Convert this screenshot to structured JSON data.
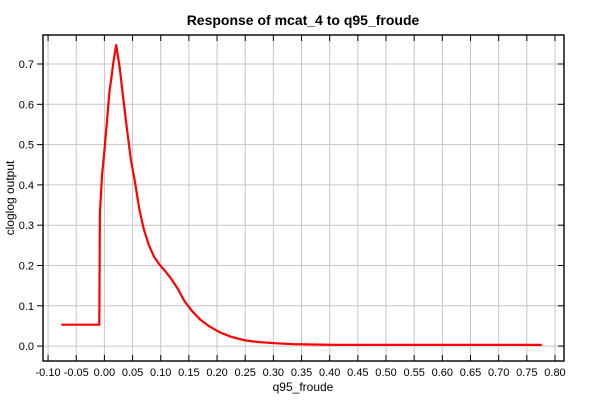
{
  "chart_data": {
    "type": "line",
    "title": "Response of mcat_4 to q95_froude",
    "xlabel": "q95_froude",
    "ylabel": "cloglog output",
    "xlim": [
      -0.109,
      0.816
    ],
    "ylim": [
      -0.037,
      0.772
    ],
    "grid": true,
    "legend": false,
    "x_ticks": [
      -0.1,
      -0.05,
      0.0,
      0.05,
      0.1,
      0.15,
      0.2,
      0.25,
      0.3,
      0.35,
      0.4,
      0.45,
      0.5,
      0.55,
      0.6,
      0.65,
      0.7,
      0.75,
      0.8
    ],
    "x_tick_labels": [
      "-0.10",
      "-0.05",
      "0.00",
      "0.05",
      "0.10",
      "0.15",
      "0.20",
      "0.25",
      "0.30",
      "0.35",
      "0.40",
      "0.45",
      "0.50",
      "0.55",
      "0.60",
      "0.65",
      "0.70",
      "0.75",
      "0.80"
    ],
    "y_ticks": [
      0.0,
      0.1,
      0.2,
      0.3,
      0.4,
      0.5,
      0.6,
      0.7
    ],
    "y_tick_labels": [
      "0.0",
      "0.1",
      "0.2",
      "0.3",
      "0.4",
      "0.5",
      "0.6",
      "0.7"
    ],
    "series": [
      {
        "color": "#ff0000",
        "points": [
          [
            -0.075,
            0.053
          ],
          [
            -0.009,
            0.053
          ],
          [
            -0.008,
            0.33
          ],
          [
            -0.004,
            0.425
          ],
          [
            0.0,
            0.485
          ],
          [
            0.005,
            0.565
          ],
          [
            0.009,
            0.632
          ],
          [
            0.012,
            0.662
          ],
          [
            0.016,
            0.705
          ],
          [
            0.021,
            0.747
          ],
          [
            0.027,
            0.693
          ],
          [
            0.033,
            0.62
          ],
          [
            0.04,
            0.54
          ],
          [
            0.047,
            0.462
          ],
          [
            0.054,
            0.41
          ],
          [
            0.062,
            0.34
          ],
          [
            0.07,
            0.29
          ],
          [
            0.079,
            0.25
          ],
          [
            0.088,
            0.222
          ],
          [
            0.098,
            0.202
          ],
          [
            0.108,
            0.186
          ],
          [
            0.118,
            0.168
          ],
          [
            0.13,
            0.143
          ],
          [
            0.142,
            0.112
          ],
          [
            0.155,
            0.088
          ],
          [
            0.17,
            0.066
          ],
          [
            0.185,
            0.05
          ],
          [
            0.205,
            0.034
          ],
          [
            0.225,
            0.023
          ],
          [
            0.25,
            0.014
          ],
          [
            0.275,
            0.01
          ],
          [
            0.305,
            0.007
          ],
          [
            0.335,
            0.005
          ],
          [
            0.37,
            0.004
          ],
          [
            0.41,
            0.003
          ],
          [
            0.775,
            0.003
          ]
        ]
      }
    ]
  },
  "colors": {
    "background": "#ffffff",
    "grid": "#c6c6c6",
    "axis": "#000000",
    "text": "#000000",
    "line": "#ff0000"
  }
}
